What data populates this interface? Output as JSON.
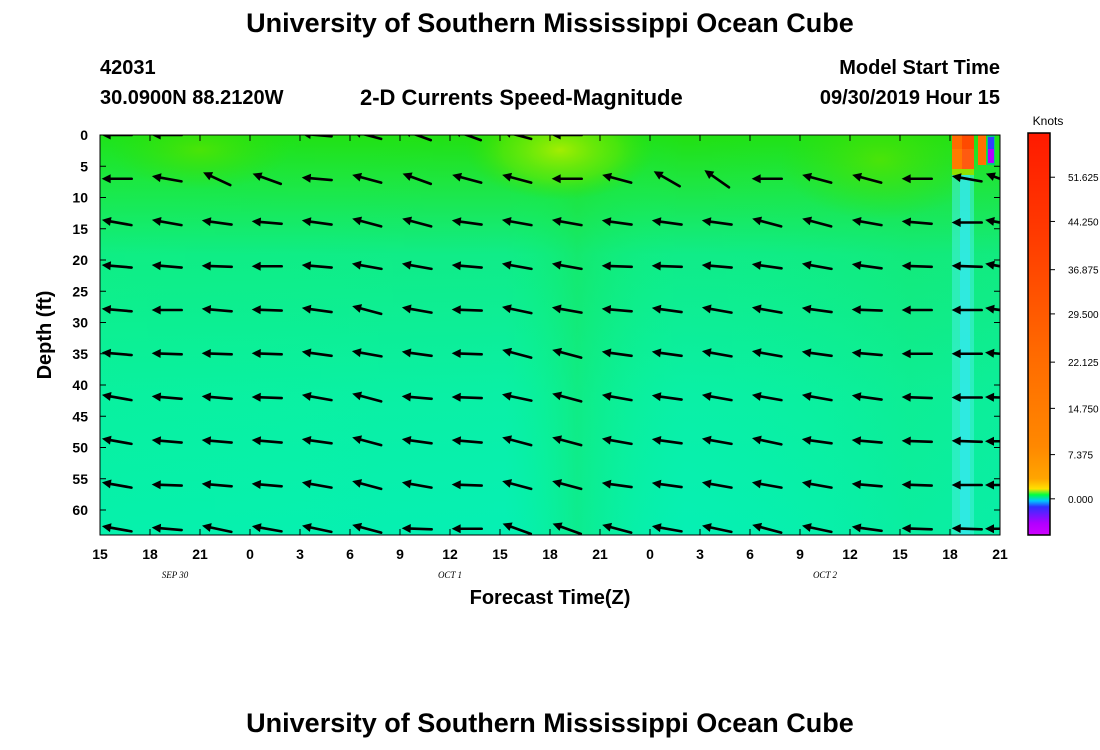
{
  "header": {
    "title": "University of Southern Mississippi Ocean Cube",
    "station_id": "42031",
    "station_position": "30.0900N 88.2120W",
    "plot_title": "2-D Currents Speed-Magnitude",
    "start_label": "Model Start Time",
    "start_time": "09/30/2019 Hour 15"
  },
  "footer": {
    "title": "University of Southern Mississippi Ocean Cube"
  },
  "chart_data": {
    "type": "heatmap",
    "xlabel": "Forecast Time(Z)",
    "ylabel": "Depth (ft)",
    "x_tick_labels": [
      "15",
      "18",
      "21",
      "0",
      "3",
      "6",
      "9",
      "12",
      "15",
      "18",
      "21",
      "0",
      "3",
      "6",
      "9",
      "12",
      "15",
      "18",
      "21"
    ],
    "date_labels": [
      {
        "text": "SEP 30",
        "tick_index": 1.5
      },
      {
        "text": "OCT 1",
        "tick_index": 7
      },
      {
        "text": "OCT 2",
        "tick_index": 14.5
      }
    ],
    "y_ticks": [
      0,
      5,
      10,
      15,
      20,
      25,
      30,
      35,
      40,
      45,
      50,
      55,
      60
    ],
    "ylim": [
      0,
      64
    ],
    "xlim_hours": [
      0,
      54
    ],
    "colorbar": {
      "unit": "Knots",
      "labels": [
        "51.625",
        "44.250",
        "36.875",
        "29.500",
        "22.125",
        "14.750",
        "7.375",
        "0.000"
      ],
      "colors": [
        "#ff2200",
        "#ff5500",
        "#ff7a00",
        "#ffa000",
        "#ffd000",
        "#00ff40",
        "#0080ff",
        "#cc00ff"
      ]
    },
    "arrow_depths_ft": [
      0,
      7,
      14,
      21,
      28,
      35,
      42,
      49,
      56,
      63
    ],
    "arrow_times_hours": [
      1,
      4,
      7,
      10,
      13,
      16,
      19,
      22,
      25,
      28,
      31,
      34,
      37,
      40,
      43,
      46,
      49,
      52,
      54
    ],
    "arrow_angles_deg": [
      [
        180,
        180,
        null,
        null,
        175,
        165,
        160,
        160,
        165,
        180,
        null,
        null,
        null,
        null,
        null,
        null,
        null,
        null,
        null
      ],
      [
        180,
        170,
        155,
        160,
        175,
        165,
        160,
        165,
        165,
        180,
        165,
        150,
        145,
        180,
        165,
        165,
        180,
        170,
        160
      ],
      [
        170,
        170,
        172,
        175,
        172,
        165,
        165,
        172,
        170,
        170,
        172,
        172,
        172,
        165,
        165,
        170,
        175,
        180,
        170
      ],
      [
        175,
        175,
        178,
        180,
        175,
        170,
        170,
        175,
        170,
        170,
        178,
        178,
        175,
        172,
        170,
        172,
        178,
        178,
        170
      ],
      [
        175,
        180,
        175,
        178,
        172,
        165,
        170,
        178,
        168,
        170,
        175,
        172,
        170,
        170,
        172,
        178,
        180,
        180,
        172
      ],
      [
        175,
        178,
        178,
        178,
        172,
        170,
        172,
        178,
        165,
        165,
        172,
        172,
        170,
        170,
        172,
        175,
        180,
        180,
        175
      ],
      [
        170,
        175,
        175,
        178,
        170,
        165,
        175,
        178,
        168,
        165,
        170,
        172,
        170,
        170,
        170,
        172,
        178,
        180,
        178
      ],
      [
        170,
        175,
        175,
        175,
        172,
        165,
        172,
        175,
        165,
        165,
        170,
        172,
        170,
        168,
        172,
        175,
        178,
        178,
        180
      ],
      [
        170,
        178,
        175,
        175,
        170,
        165,
        170,
        178,
        165,
        165,
        172,
        172,
        170,
        170,
        170,
        175,
        178,
        180,
        180
      ],
      [
        170,
        175,
        168,
        170,
        168,
        165,
        178,
        180,
        160,
        160,
        165,
        170,
        168,
        165,
        168,
        172,
        178,
        178,
        180
      ]
    ]
  }
}
